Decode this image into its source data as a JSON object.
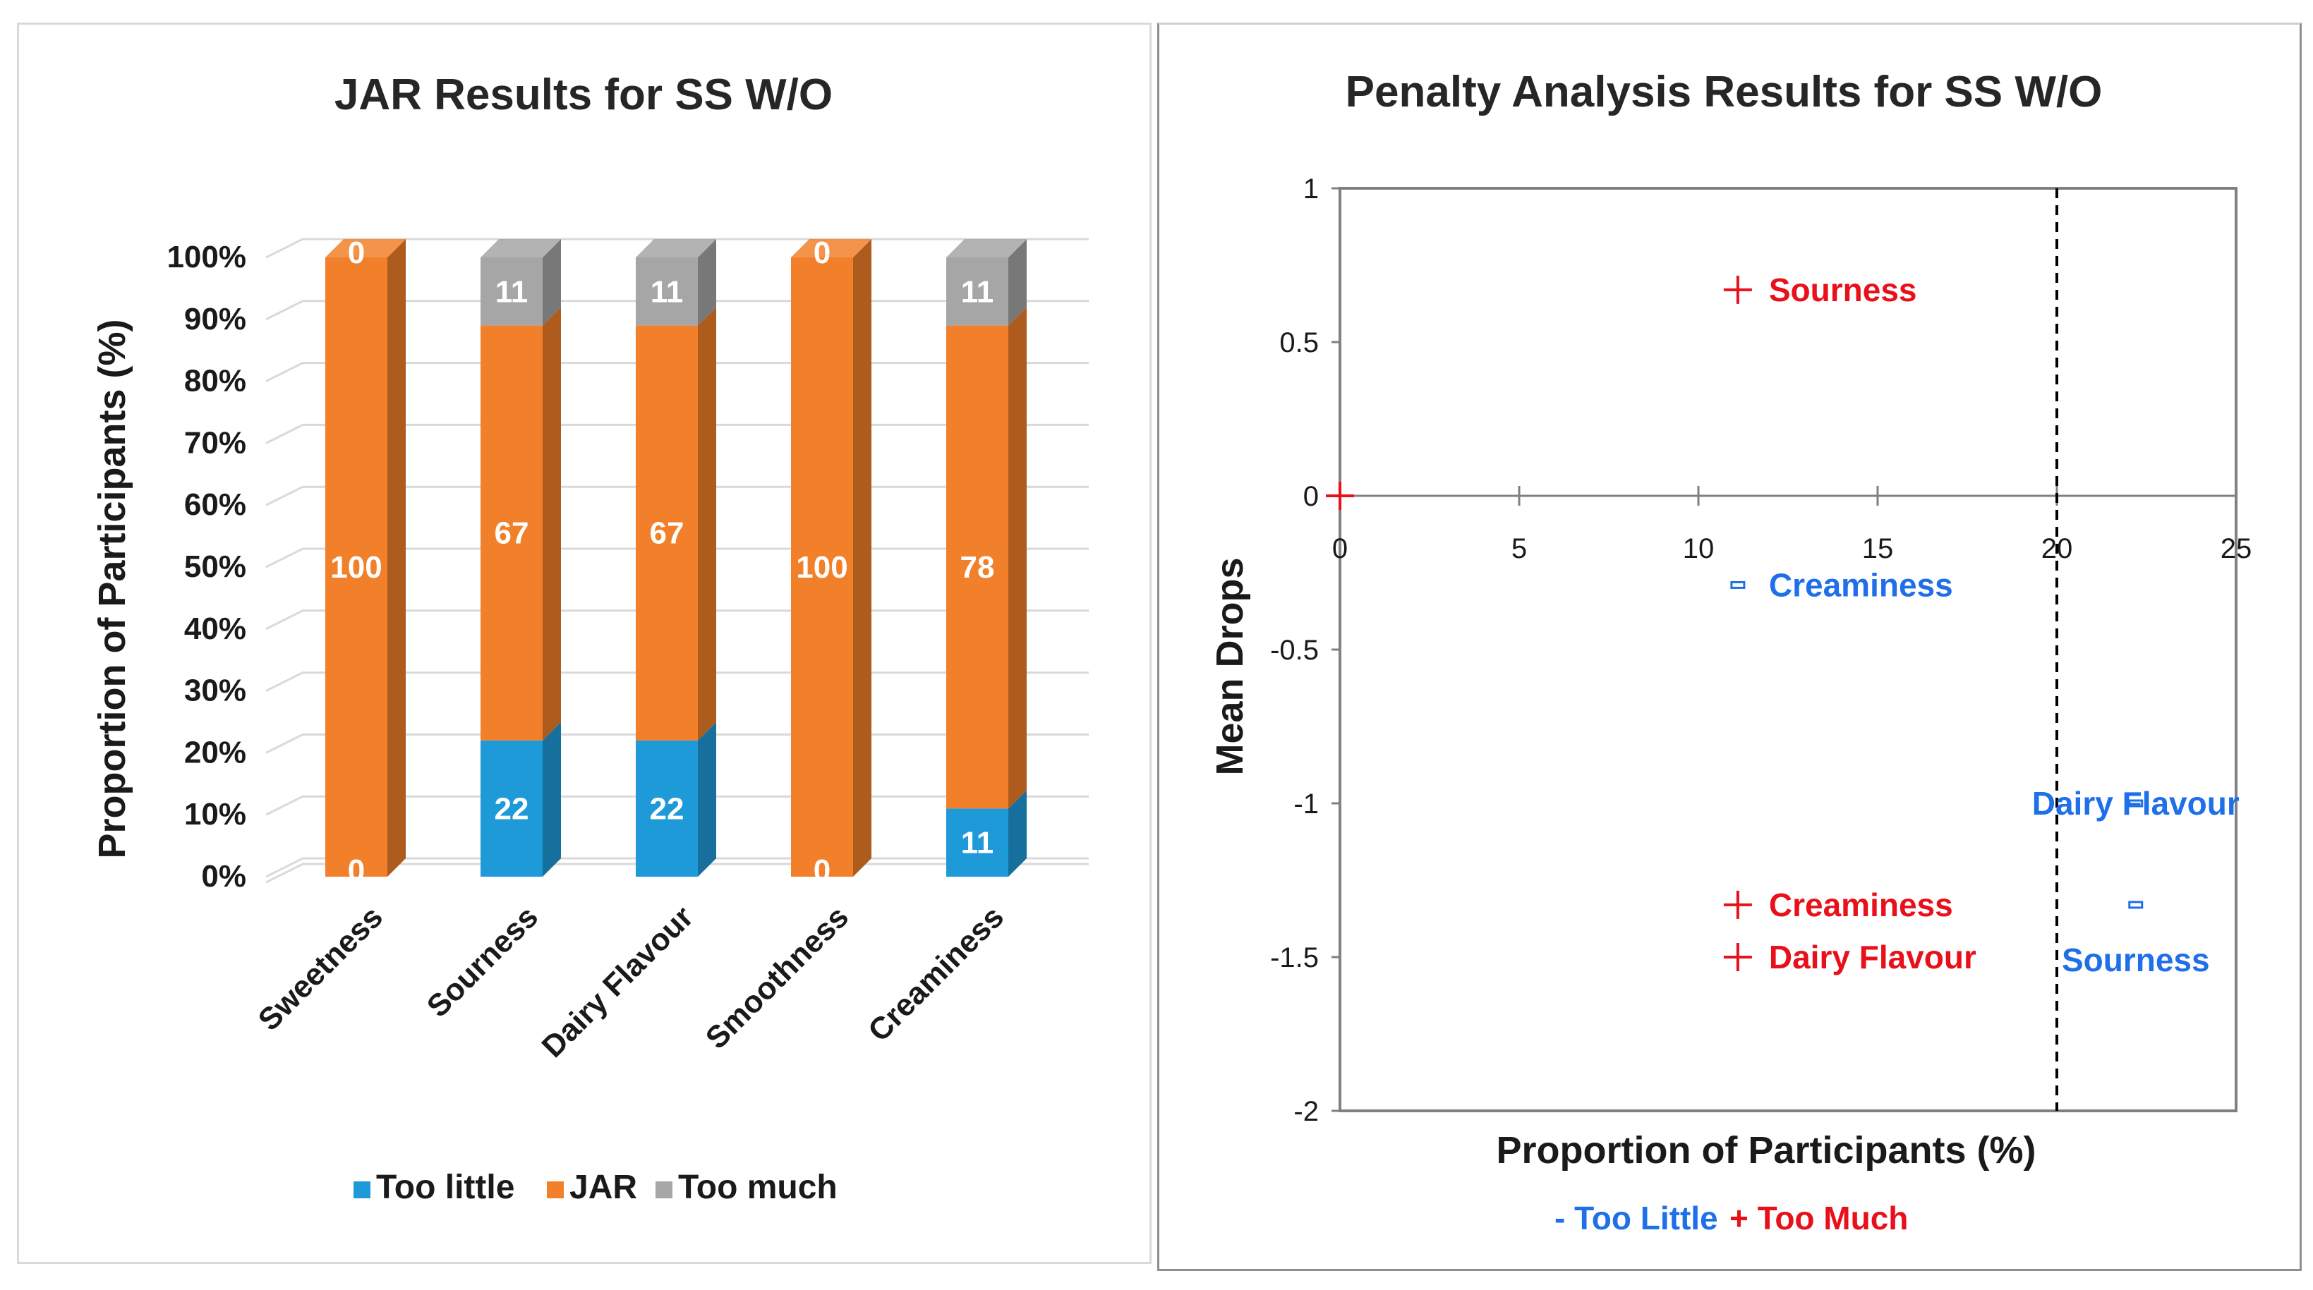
{
  "chart_data": [
    {
      "type": "bar",
      "stacked": true,
      "title": "JAR Results for SS W/O",
      "xlabel": "",
      "ylabel": "Proportion of Participants (%)",
      "ylim": [
        0,
        100
      ],
      "yticks": [
        "0%",
        "10%",
        "20%",
        "30%",
        "40%",
        "50%",
        "60%",
        "70%",
        "80%",
        "90%",
        "100%"
      ],
      "categories": [
        "Sweetness",
        "Sourness",
        "Dairy Flavour",
        "Smoothness",
        "Creaminess"
      ],
      "series": [
        {
          "name": "Too little",
          "color": "#1f9ad8",
          "values": [
            0,
            22,
            22,
            0,
            11
          ]
        },
        {
          "name": "JAR",
          "color": "#f2802a",
          "values": [
            100,
            67,
            67,
            100,
            78
          ]
        },
        {
          "name": "Too much",
          "color": "#a6a6a6",
          "values": [
            0,
            11,
            11,
            0,
            11
          ]
        }
      ],
      "legend_position": "bottom"
    },
    {
      "type": "scatter",
      "title": "Penalty Analysis Results for SS W/O",
      "xlabel": "Proportion of Participants (%)",
      "ylabel": "Mean Drops",
      "xlim": [
        0,
        25
      ],
      "ylim": [
        -2,
        1
      ],
      "xticks": [
        "0",
        "5",
        "10",
        "15",
        "20",
        "25"
      ],
      "yticks": [
        "1",
        "0.5",
        "0",
        "-0.5",
        "-1",
        "-1.5",
        "-2"
      ],
      "threshold_x": 20,
      "series": [
        {
          "name": "Too Little",
          "marker": "-",
          "color": "#1f6fe8",
          "points": [
            {
              "label": "Creaminess",
              "x": 11.1,
              "y": -0.29
            },
            {
              "label": "Dairy Flavour",
              "x": 22.2,
              "y": -1.0
            },
            {
              "label": "Sourness",
              "x": 22.2,
              "y": -1.33
            }
          ]
        },
        {
          "name": "Too Much",
          "marker": "+",
          "color": "#e8101a",
          "points": [
            {
              "label": "Sourness",
              "x": 11.1,
              "y": 0.67
            },
            {
              "label": "Creaminess",
              "x": 11.1,
              "y": -1.33
            },
            {
              "label": "Dairy Flavour",
              "x": 11.1,
              "y": -1.5
            },
            {
              "label": "",
              "x": 0,
              "y": 0
            }
          ]
        }
      ],
      "legend": {
        "too_little": "- Too Little",
        "too_much": "+ Too Much"
      }
    }
  ]
}
